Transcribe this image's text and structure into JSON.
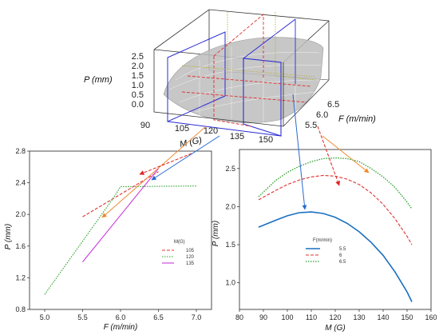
{
  "chart_data": [
    {
      "id": "surface",
      "type": "surface",
      "zlabel": "P (mm)",
      "xlabel": "M (G)",
      "ylabel": "F (m/min)",
      "z_ticks": [
        "2.5",
        "2.0",
        "1.5",
        "1.0",
        "0.5",
        "0.0"
      ],
      "x_ticks": [
        "90",
        "105",
        "120",
        "135",
        "150"
      ],
      "y_ticks": [
        "6.5",
        "6.0",
        "5.5"
      ],
      "colors": {
        "box": "#333333",
        "surface": "#b8b8b8",
        "blue_plane": "#2b2bd6",
        "red_plane": "#e03030",
        "olive_plane": "#b8b040"
      }
    },
    {
      "id": "left",
      "type": "line",
      "xlabel": "F (m/min)",
      "ylabel": "P (mm)",
      "x_ticks": [
        "5.0",
        "5.5",
        "6.0",
        "6.5",
        "7.0"
      ],
      "y_ticks": [
        "0.8",
        "1.2",
        "1.6",
        "2.0",
        "2.4",
        "2.8"
      ],
      "xlim": [
        4.8,
        7.2
      ],
      "ylim": [
        0.8,
        2.8
      ],
      "legend_title": "M(G)",
      "legend_position": "lower-right",
      "series": [
        {
          "name": "105",
          "color": "#e03030",
          "dash": "4,2",
          "x": [
            5.5,
            6.5
          ],
          "y": [
            1.97,
            2.54
          ]
        },
        {
          "name": "120",
          "color": "#2aa02a",
          "dash": "1.5,1.5",
          "x": [
            5.0,
            5.9,
            6.0,
            7.0
          ],
          "y": [
            0.99,
            2.2,
            2.35,
            2.36
          ]
        },
        {
          "name": "135",
          "color": "#c83cd8",
          "dash": "",
          "x": [
            5.5,
            6.5
          ],
          "y": [
            1.4,
            2.58
          ]
        }
      ]
    },
    {
      "id": "right",
      "type": "line",
      "xlabel": "M (G)",
      "ylabel": "P (mm)",
      "x_ticks": [
        "80",
        "90",
        "100",
        "110",
        "120",
        "130",
        "140",
        "150",
        "160"
      ],
      "y_ticks": [
        "1.0",
        "1.5",
        "2.0",
        "2.5"
      ],
      "xlim": [
        80,
        160
      ],
      "ylim": [
        0.65,
        2.75
      ],
      "legend_title": "F(m/min)",
      "legend_position": "top-center",
      "series": [
        {
          "name": "5.5",
          "color": "#1a6fc0",
          "dash": "",
          "width": 1.6,
          "x": [
            88,
            95,
            100,
            105,
            110,
            115,
            120,
            125,
            130,
            135,
            140,
            145,
            150,
            152
          ],
          "y": [
            1.73,
            1.82,
            1.88,
            1.92,
            1.93,
            1.91,
            1.86,
            1.78,
            1.67,
            1.53,
            1.36,
            1.14,
            0.88,
            0.75
          ]
        },
        {
          "name": "6",
          "color": "#e03030",
          "dash": "4,2",
          "width": 1.1,
          "x": [
            88,
            95,
            100,
            105,
            110,
            115,
            120,
            125,
            130,
            135,
            140,
            145,
            150,
            152
          ],
          "y": [
            2.09,
            2.21,
            2.29,
            2.35,
            2.39,
            2.41,
            2.4,
            2.36,
            2.29,
            2.18,
            2.03,
            1.84,
            1.61,
            1.5
          ]
        },
        {
          "name": "6.5",
          "color": "#2aa02a",
          "dash": "1.5,1.5",
          "width": 1.3,
          "x": [
            88,
            95,
            100,
            105,
            110,
            115,
            120,
            125,
            130,
            135,
            140,
            145,
            150,
            152
          ],
          "y": [
            2.13,
            2.34,
            2.45,
            2.53,
            2.59,
            2.63,
            2.64,
            2.63,
            2.59,
            2.5,
            2.39,
            2.25,
            2.06,
            1.97
          ]
        }
      ]
    }
  ]
}
